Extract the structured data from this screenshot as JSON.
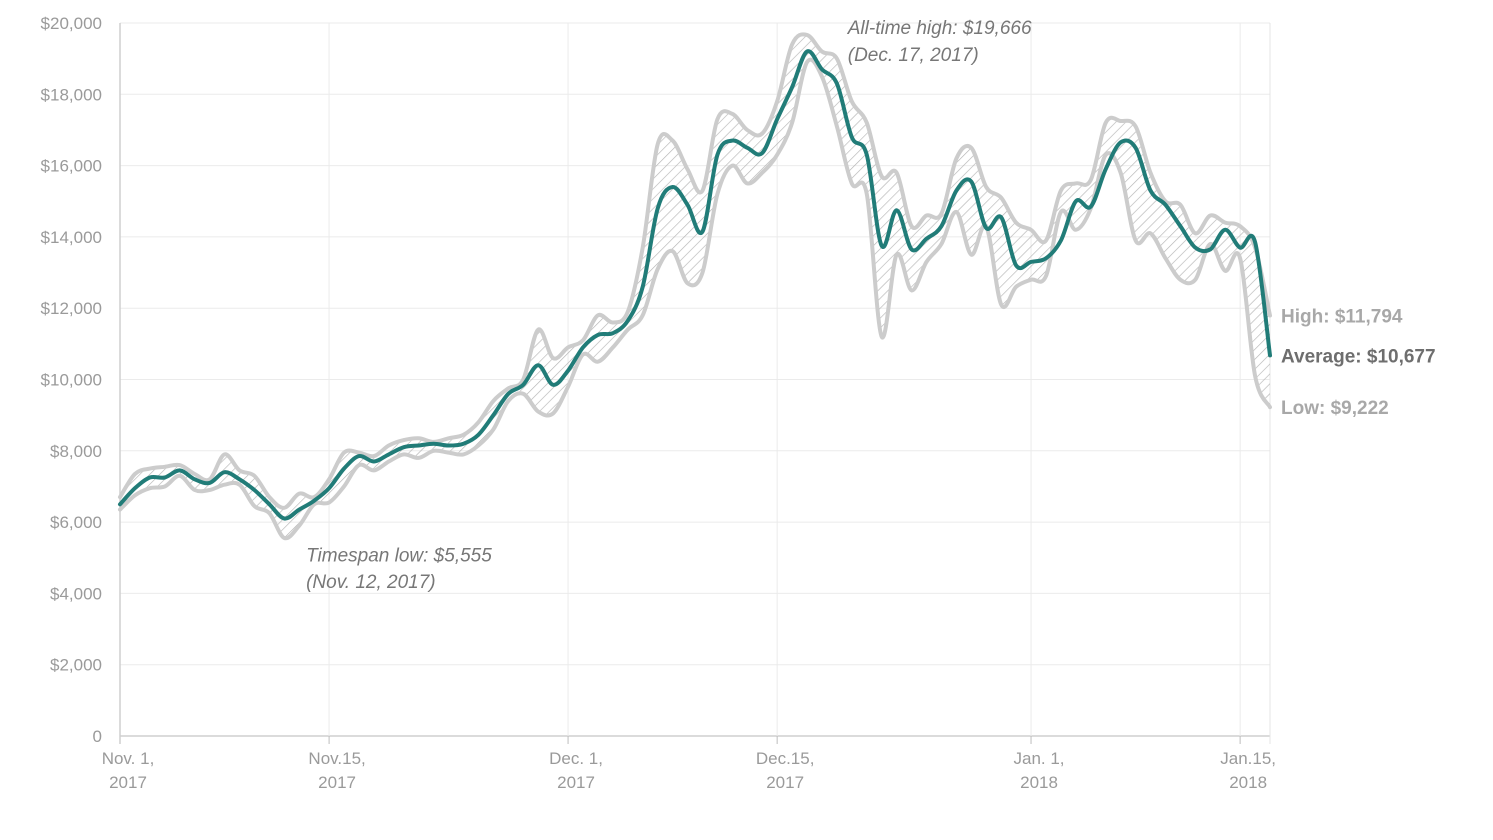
{
  "chart_data": {
    "type": "line",
    "title": "",
    "xlabel": "",
    "ylabel": "",
    "ylim": [
      0,
      20000
    ],
    "grid": true,
    "y_ticks": [
      "0",
      "$2,000",
      "$4,000",
      "$6,000",
      "$8,000",
      "$10,000",
      "$12,000",
      "$14,000",
      "$16,000",
      "$18,000",
      "$20,000"
    ],
    "y_tick_values": [
      0,
      2000,
      4000,
      6000,
      8000,
      10000,
      12000,
      14000,
      16000,
      18000,
      20000
    ],
    "x_ticks": [
      {
        "date": "2017-11-01",
        "line1": "Nov. 1,",
        "line2": "2017"
      },
      {
        "date": "2017-11-15",
        "line1": "Nov.15,",
        "line2": "2017"
      },
      {
        "date": "2017-12-01",
        "line1": "Dec. 1,",
        "line2": "2017"
      },
      {
        "date": "2017-12-15",
        "line1": "Dec.15,",
        "line2": "2017"
      },
      {
        "date": "2018-01-01",
        "line1": "Jan. 1,",
        "line2": "2018"
      },
      {
        "date": "2018-01-15",
        "line1": "Jan.15,",
        "line2": "2018"
      }
    ],
    "x_range": [
      "2017-11-01",
      "2018-01-17"
    ],
    "series": [
      {
        "key": "high",
        "color": "#cccccc",
        "values": [
          [
            "2017-11-01",
            6700
          ],
          [
            "2017-11-02",
            7350
          ],
          [
            "2017-11-03",
            7500
          ],
          [
            "2017-11-04",
            7550
          ],
          [
            "2017-11-05",
            7600
          ],
          [
            "2017-11-06",
            7350
          ],
          [
            "2017-11-07",
            7200
          ],
          [
            "2017-11-08",
            7900
          ],
          [
            "2017-11-09",
            7450
          ],
          [
            "2017-11-10",
            7300
          ],
          [
            "2017-11-11",
            6700
          ],
          [
            "2017-11-12",
            6400
          ],
          [
            "2017-11-13",
            6800
          ],
          [
            "2017-11-14",
            6700
          ],
          [
            "2017-11-15",
            7200
          ],
          [
            "2017-11-16",
            7950
          ],
          [
            "2017-11-17",
            7950
          ],
          [
            "2017-11-18",
            7850
          ],
          [
            "2017-11-19",
            8150
          ],
          [
            "2017-11-20",
            8300
          ],
          [
            "2017-11-21",
            8350
          ],
          [
            "2017-11-22",
            8250
          ],
          [
            "2017-11-23",
            8350
          ],
          [
            "2017-11-24",
            8450
          ],
          [
            "2017-11-25",
            8800
          ],
          [
            "2017-11-26",
            9400
          ],
          [
            "2017-11-27",
            9750
          ],
          [
            "2017-11-28",
            10000
          ],
          [
            "2017-11-29",
            11400
          ],
          [
            "2017-11-30",
            10600
          ],
          [
            "2017-12-01",
            10900
          ],
          [
            "2017-12-02",
            11100
          ],
          [
            "2017-12-03",
            11800
          ],
          [
            "2017-12-04",
            11600
          ],
          [
            "2017-12-05",
            11900
          ],
          [
            "2017-12-06",
            13700
          ],
          [
            "2017-12-07",
            16600
          ],
          [
            "2017-12-08",
            16700
          ],
          [
            "2017-12-09",
            15900
          ],
          [
            "2017-12-10",
            15300
          ],
          [
            "2017-12-11",
            17300
          ],
          [
            "2017-12-12",
            17450
          ],
          [
            "2017-12-13",
            17000
          ],
          [
            "2017-12-14",
            16900
          ],
          [
            "2017-12-15",
            17800
          ],
          [
            "2017-12-16",
            19400
          ],
          [
            "2017-12-17",
            19666
          ],
          [
            "2017-12-18",
            19200
          ],
          [
            "2017-12-19",
            19000
          ],
          [
            "2017-12-20",
            17800
          ],
          [
            "2017-12-21",
            17200
          ],
          [
            "2017-12-22",
            15700
          ],
          [
            "2017-12-23",
            15800
          ],
          [
            "2017-12-24",
            14300
          ],
          [
            "2017-12-25",
            14600
          ],
          [
            "2017-12-26",
            14650
          ],
          [
            "2017-12-27",
            16200
          ],
          [
            "2017-12-28",
            16500
          ],
          [
            "2017-12-29",
            15400
          ],
          [
            "2017-12-30",
            15100
          ],
          [
            "2017-12-31",
            14400
          ],
          [
            "2018-01-01",
            14200
          ],
          [
            "2018-01-02",
            13900
          ],
          [
            "2018-01-03",
            15300
          ],
          [
            "2018-01-04",
            15500
          ],
          [
            "2018-01-05",
            15600
          ],
          [
            "2018-01-06",
            17200
          ],
          [
            "2018-01-07",
            17250
          ],
          [
            "2018-01-08",
            17100
          ],
          [
            "2018-01-09",
            15800
          ],
          [
            "2018-01-10",
            15000
          ],
          [
            "2018-01-11",
            14900
          ],
          [
            "2018-01-12",
            14100
          ],
          [
            "2018-01-13",
            14600
          ],
          [
            "2018-01-14",
            14400
          ],
          [
            "2018-01-15",
            14300
          ],
          [
            "2018-01-16",
            13700
          ],
          [
            "2018-01-17",
            11794
          ]
        ]
      },
      {
        "key": "low",
        "color": "#cccccc",
        "values": [
          [
            "2017-11-01",
            6350
          ],
          [
            "2017-11-02",
            6750
          ],
          [
            "2017-11-03",
            6950
          ],
          [
            "2017-11-04",
            7000
          ],
          [
            "2017-11-05",
            7300
          ],
          [
            "2017-11-06",
            6900
          ],
          [
            "2017-11-07",
            6900
          ],
          [
            "2017-11-08",
            7050
          ],
          [
            "2017-11-09",
            7050
          ],
          [
            "2017-11-10",
            6450
          ],
          [
            "2017-11-11",
            6250
          ],
          [
            "2017-11-12",
            5555
          ],
          [
            "2017-11-13",
            5900
          ],
          [
            "2017-11-14",
            6500
          ],
          [
            "2017-11-15",
            6550
          ],
          [
            "2017-11-16",
            7000
          ],
          [
            "2017-11-17",
            7600
          ],
          [
            "2017-11-18",
            7450
          ],
          [
            "2017-11-19",
            7700
          ],
          [
            "2017-11-20",
            7900
          ],
          [
            "2017-11-21",
            7800
          ],
          [
            "2017-11-22",
            8000
          ],
          [
            "2017-11-23",
            7950
          ],
          [
            "2017-11-24",
            7900
          ],
          [
            "2017-11-25",
            8150
          ],
          [
            "2017-11-26",
            8600
          ],
          [
            "2017-11-27",
            9400
          ],
          [
            "2017-11-28",
            9600
          ],
          [
            "2017-11-29",
            9100
          ],
          [
            "2017-11-30",
            9050
          ],
          [
            "2017-12-01",
            9800
          ],
          [
            "2017-12-02",
            10700
          ],
          [
            "2017-12-03",
            10500
          ],
          [
            "2017-12-04",
            10900
          ],
          [
            "2017-12-05",
            11400
          ],
          [
            "2017-12-06",
            11800
          ],
          [
            "2017-12-07",
            13100
          ],
          [
            "2017-12-08",
            13600
          ],
          [
            "2017-12-09",
            12700
          ],
          [
            "2017-12-10",
            13000
          ],
          [
            "2017-12-11",
            15200
          ],
          [
            "2017-12-12",
            16000
          ],
          [
            "2017-12-13",
            15500
          ],
          [
            "2017-12-14",
            15800
          ],
          [
            "2017-12-15",
            16300
          ],
          [
            "2017-12-16",
            17200
          ],
          [
            "2017-12-17",
            18900
          ],
          [
            "2017-12-18",
            18500
          ],
          [
            "2017-12-19",
            17100
          ],
          [
            "2017-12-20",
            15500
          ],
          [
            "2017-12-21",
            15200
          ],
          [
            "2017-12-22",
            11200
          ],
          [
            "2017-12-23",
            13500
          ],
          [
            "2017-12-24",
            12500
          ],
          [
            "2017-12-25",
            13300
          ],
          [
            "2017-12-26",
            13800
          ],
          [
            "2017-12-27",
            14700
          ],
          [
            "2017-12-28",
            13500
          ],
          [
            "2017-12-29",
            14300
          ],
          [
            "2017-12-30",
            12100
          ],
          [
            "2017-12-31",
            12600
          ],
          [
            "2018-01-01",
            12800
          ],
          [
            "2018-01-02",
            12900
          ],
          [
            "2018-01-03",
            14700
          ],
          [
            "2018-01-04",
            14200
          ],
          [
            "2018-01-05",
            14800
          ],
          [
            "2018-01-06",
            16300
          ],
          [
            "2018-01-07",
            15800
          ],
          [
            "2018-01-08",
            13900
          ],
          [
            "2018-01-09",
            14100
          ],
          [
            "2018-01-10",
            13400
          ],
          [
            "2018-01-11",
            12800
          ],
          [
            "2018-01-12",
            12800
          ],
          [
            "2018-01-13",
            13800
          ],
          [
            "2018-01-14",
            13050
          ],
          [
            "2018-01-15",
            13400
          ],
          [
            "2018-01-16",
            10100
          ],
          [
            "2018-01-17",
            9222
          ]
        ]
      },
      {
        "key": "average",
        "color": "#217c78",
        "values": [
          [
            "2017-11-01",
            6500
          ],
          [
            "2017-11-02",
            6950
          ],
          [
            "2017-11-03",
            7250
          ],
          [
            "2017-11-04",
            7250
          ],
          [
            "2017-11-05",
            7450
          ],
          [
            "2017-11-06",
            7200
          ],
          [
            "2017-11-07",
            7100
          ],
          [
            "2017-11-08",
            7400
          ],
          [
            "2017-11-09",
            7200
          ],
          [
            "2017-11-10",
            6900
          ],
          [
            "2017-11-11",
            6500
          ],
          [
            "2017-11-12",
            6100
          ],
          [
            "2017-11-13",
            6350
          ],
          [
            "2017-11-14",
            6600
          ],
          [
            "2017-11-15",
            6950
          ],
          [
            "2017-11-16",
            7500
          ],
          [
            "2017-11-17",
            7850
          ],
          [
            "2017-11-18",
            7700
          ],
          [
            "2017-11-19",
            7900
          ],
          [
            "2017-11-20",
            8100
          ],
          [
            "2017-11-21",
            8150
          ],
          [
            "2017-11-22",
            8200
          ],
          [
            "2017-11-23",
            8150
          ],
          [
            "2017-11-24",
            8200
          ],
          [
            "2017-11-25",
            8450
          ],
          [
            "2017-11-26",
            9000
          ],
          [
            "2017-11-27",
            9600
          ],
          [
            "2017-11-28",
            9850
          ],
          [
            "2017-11-29",
            10400
          ],
          [
            "2017-11-30",
            9850
          ],
          [
            "2017-12-01",
            10250
          ],
          [
            "2017-12-02",
            10900
          ],
          [
            "2017-12-03",
            11250
          ],
          [
            "2017-12-04",
            11300
          ],
          [
            "2017-12-05",
            11650
          ],
          [
            "2017-12-06",
            12600
          ],
          [
            "2017-12-07",
            14800
          ],
          [
            "2017-12-08",
            15400
          ],
          [
            "2017-12-09",
            14900
          ],
          [
            "2017-12-10",
            14150
          ],
          [
            "2017-12-11",
            16300
          ],
          [
            "2017-12-12",
            16700
          ],
          [
            "2017-12-13",
            16500
          ],
          [
            "2017-12-14",
            16350
          ],
          [
            "2017-12-15",
            17300
          ],
          [
            "2017-12-16",
            18200
          ],
          [
            "2017-12-17",
            19200
          ],
          [
            "2017-12-18",
            18700
          ],
          [
            "2017-12-19",
            18300
          ],
          [
            "2017-12-20",
            16800
          ],
          [
            "2017-12-21",
            16300
          ],
          [
            "2017-12-22",
            13750
          ],
          [
            "2017-12-23",
            14750
          ],
          [
            "2017-12-24",
            13650
          ],
          [
            "2017-12-25",
            13950
          ],
          [
            "2017-12-26",
            14300
          ],
          [
            "2017-12-27",
            15300
          ],
          [
            "2017-12-28",
            15550
          ],
          [
            "2017-12-29",
            14250
          ],
          [
            "2017-12-30",
            14550
          ],
          [
            "2017-12-31",
            13200
          ],
          [
            "2018-01-01",
            13300
          ],
          [
            "2018-01-02",
            13400
          ],
          [
            "2018-01-03",
            13900
          ],
          [
            "2018-01-04",
            15000
          ],
          [
            "2018-01-05",
            14850
          ],
          [
            "2018-01-06",
            15900
          ],
          [
            "2018-01-07",
            16650
          ],
          [
            "2018-01-08",
            16500
          ],
          [
            "2018-01-09",
            15300
          ],
          [
            "2018-01-10",
            14900
          ],
          [
            "2018-01-11",
            14300
          ],
          [
            "2018-01-12",
            13700
          ],
          [
            "2018-01-13",
            13650
          ],
          [
            "2018-01-14",
            14200
          ],
          [
            "2018-01-15",
            13700
          ],
          [
            "2018-01-16",
            13850
          ],
          [
            "2018-01-17",
            10677
          ]
        ]
      }
    ],
    "annotations": [
      {
        "key": "ath",
        "date": "2017-12-21",
        "value": 19666,
        "line1": "All-time high: $19,666",
        "line2": "(Dec. 17, 2017)"
      },
      {
        "key": "low",
        "date": "2017-11-15",
        "value": 5555,
        "line1": "Timespan low: $5,555",
        "line2": "(Nov. 12, 2017)"
      }
    ],
    "end_labels": [
      {
        "key": "high",
        "text": "High: $11,794",
        "color": "#a8a8a8"
      },
      {
        "key": "average",
        "text": "Average: $10,677",
        "color": "#6e6e6e"
      },
      {
        "key": "low",
        "text": "Low: $9,222",
        "color": "#a8a8a8"
      }
    ]
  }
}
